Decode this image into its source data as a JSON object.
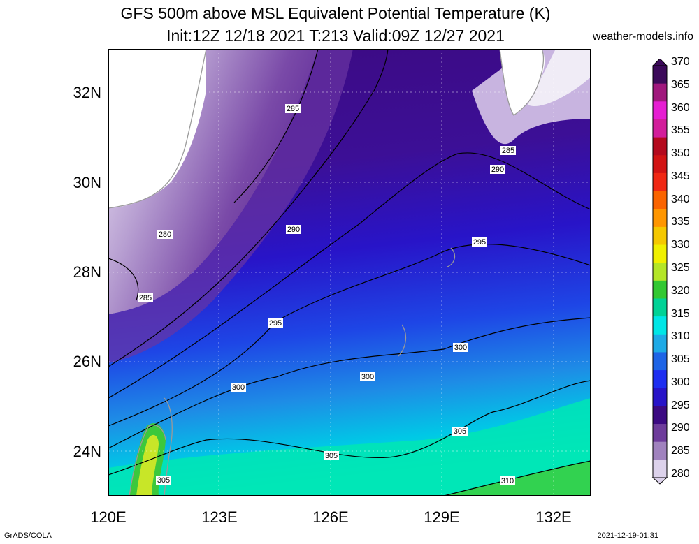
{
  "header": {
    "title_line1": "GFS 500m above MSL Equivalent Potential Temperature (K)",
    "title_line2": "Init:12Z 12/18 2021 T:213 Valid:09Z 12/27 2021",
    "credit": "weather-models.info"
  },
  "axes": {
    "lat_labels": [
      "32N",
      "30N",
      "28N",
      "26N",
      "24N"
    ],
    "lon_labels": [
      "120E",
      "123E",
      "126E",
      "129E",
      "132E"
    ]
  },
  "contour_labels": [
    "285",
    "290",
    "280",
    "285",
    "295",
    "290",
    "285",
    "295",
    "300",
    "300",
    "300",
    "305",
    "305",
    "305",
    "310"
  ],
  "colorbar": {
    "labels": [
      "370",
      "365",
      "360",
      "355",
      "350",
      "345",
      "340",
      "335",
      "330",
      "325",
      "320",
      "315",
      "310",
      "305",
      "300",
      "295",
      "290",
      "285",
      "280"
    ],
    "colors": [
      "#3c0a5a",
      "#a0187d",
      "#e61ed2",
      "#d21e9b",
      "#b40a1e",
      "#d21414",
      "#f02814",
      "#fa6400",
      "#ff9600",
      "#f5c800",
      "#f0f000",
      "#b4e628",
      "#32c832",
      "#00d296",
      "#00e6e6",
      "#1eaae6",
      "#1e64e6",
      "#1e2ef0",
      "#2814c8",
      "#3c0a82",
      "#6e3c9b",
      "#a082be",
      "#dcd2eb"
    ]
  },
  "footer": {
    "left": "GrADS/COLA",
    "right": "2021-12-19-01:31"
  }
}
